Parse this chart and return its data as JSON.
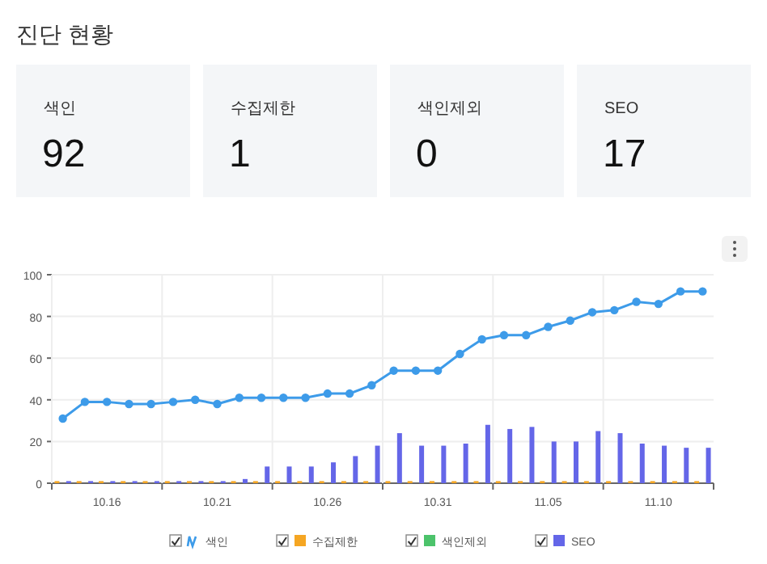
{
  "chart_data": [
    {
      "type": "other",
      "title": "진단 현황",
      "categories": [
        "색인",
        "수집제한",
        "색인제외",
        "SEO"
      ],
      "values": [
        92,
        1,
        0,
        17
      ],
      "data_labels": true
    },
    {
      "type": "bar",
      "categories": [
        null,
        null,
        "10.16",
        null,
        null,
        null,
        null,
        "10.21",
        null,
        null,
        null,
        null,
        "10.26",
        null,
        null,
        null,
        null,
        "10.31",
        null,
        null,
        null,
        null,
        "11.05",
        null,
        null,
        null,
        null,
        "11.10",
        null,
        null
      ],
      "series": [
        {
          "name": "색인",
          "type": "line",
          "color": "#3d9be9",
          "values": [
            31,
            39,
            39,
            38,
            38,
            39,
            40,
            38,
            41,
            41,
            41,
            41,
            43,
            43,
            47,
            54,
            54,
            54,
            62,
            69,
            71,
            71,
            75,
            78,
            82,
            83,
            87,
            86,
            92,
            92
          ]
        },
        {
          "name": "수집제한",
          "color": "#f5a623",
          "values": [
            1,
            1,
            1,
            1,
            1,
            1,
            1,
            1,
            1,
            1,
            1,
            1,
            1,
            1,
            1,
            1,
            1,
            1,
            1,
            1,
            1,
            1,
            1,
            1,
            1,
            1,
            1,
            1,
            1,
            1
          ]
        },
        {
          "name": "색인제외",
          "color": "#4cc36b",
          "values": [
            0,
            0,
            0,
            0,
            0,
            0,
            0,
            0,
            0,
            0,
            0,
            0,
            0,
            0,
            0,
            0,
            0,
            0,
            0,
            0,
            0,
            0,
            0,
            0,
            0,
            0,
            0,
            0,
            0,
            0
          ]
        },
        {
          "name": "SEO",
          "color": "#6466e8",
          "values": [
            1,
            1,
            1,
            1,
            1,
            1,
            1,
            1,
            2,
            8,
            8,
            8,
            10,
            13,
            18,
            24,
            18,
            18,
            19,
            28,
            26,
            27,
            20,
            20,
            25,
            24,
            19,
            18,
            17,
            17
          ]
        }
      ],
      "ylim": [
        0,
        100
      ],
      "yticks": [
        0,
        20,
        40,
        60,
        80,
        100
      ],
      "grid": true,
      "legend": "bottom",
      "marker": "circle"
    }
  ]
}
